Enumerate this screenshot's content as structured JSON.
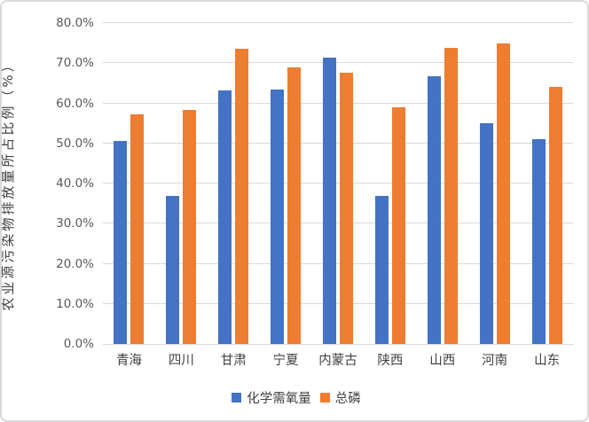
{
  "chart_data": {
    "type": "bar",
    "title": "",
    "xlabel": "",
    "ylabel": "农业源污染物排放量所占比例（%）",
    "categories": [
      "青海",
      "四川",
      "甘肃",
      "宁夏",
      "内蒙古",
      "陕西",
      "山西",
      "河南",
      "山东"
    ],
    "series": [
      {
        "name": "化学需氧量",
        "color": "#4472C4",
        "values": [
          50.7,
          36.9,
          63.1,
          63.5,
          71.4,
          37.0,
          66.8,
          55.1,
          51.0
        ]
      },
      {
        "name": "总磷",
        "color": "#ED7D31",
        "values": [
          57.2,
          58.3,
          73.6,
          68.9,
          67.7,
          59.1,
          73.8,
          74.9,
          64.1
        ]
      }
    ],
    "ylim": [
      0,
      80
    ],
    "ytick_step": 10,
    "ytick_labels": [
      "0.0%",
      "10.0%",
      "20.0%",
      "30.0%",
      "40.0%",
      "50.0%",
      "60.0%",
      "70.0%",
      "80.0%"
    ],
    "grid": "horizontal",
    "gridline_color": "#D9D9D9",
    "legend_position": "bottom",
    "text_color": "#404040",
    "tick_color": "#595959"
  }
}
